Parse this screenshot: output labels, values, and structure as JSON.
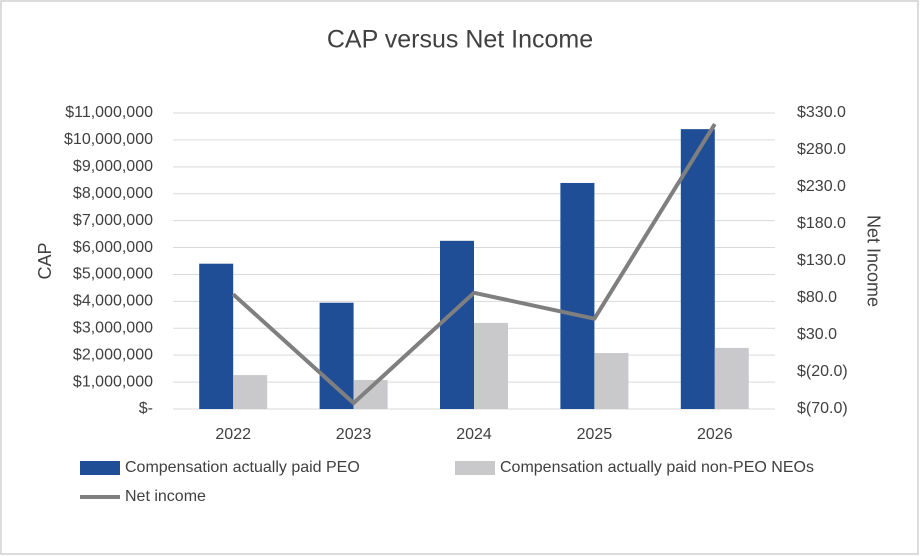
{
  "chart_data": {
    "type": "bar",
    "title": "CAP versus Net Income",
    "y_label": "CAP",
    "y2_label": "Net Income",
    "categories": [
      "2022",
      "2023",
      "2024",
      "2025",
      "2026"
    ],
    "series": [
      {
        "name": "Compensation actually paid PEO",
        "type": "bar",
        "color": "#1f4e96",
        "values": [
          5400000,
          3950000,
          6250000,
          8400000,
          10400000
        ]
      },
      {
        "name": "Compensation actually paid non-PEO NEOs",
        "type": "bar",
        "color": "#c9c9cb",
        "values": [
          1260000,
          1080000,
          3200000,
          2080000,
          2270000
        ]
      },
      {
        "name": "Net income",
        "type": "line",
        "axis": "y2",
        "color": "#7f7f7f",
        "values": [
          85,
          -62,
          87,
          52,
          315
        ]
      }
    ],
    "ylim": [
      0,
      11000000
    ],
    "yticks": [
      {
        "value": 0,
        "label": "$-"
      },
      {
        "value": 1000000,
        "label": "$1,000,000"
      },
      {
        "value": 2000000,
        "label": "$2,000,000"
      },
      {
        "value": 3000000,
        "label": "$3,000,000"
      },
      {
        "value": 4000000,
        "label": "$4,000,000"
      },
      {
        "value": 5000000,
        "label": "$5,000,000"
      },
      {
        "value": 6000000,
        "label": "$6,000,000"
      },
      {
        "value": 7000000,
        "label": "$7,000,000"
      },
      {
        "value": 8000000,
        "label": "$8,000,000"
      },
      {
        "value": 9000000,
        "label": "$9,000,000"
      },
      {
        "value": 10000000,
        "label": "$10,000,000"
      },
      {
        "value": 11000000,
        "label": "$11,000,000"
      }
    ],
    "y2lim": [
      -70,
      330
    ],
    "y2ticks": [
      {
        "value": -70,
        "label": "$(70.0)"
      },
      {
        "value": -20,
        "label": "$(20.0)"
      },
      {
        "value": 30,
        "label": "$30.0"
      },
      {
        "value": 80,
        "label": "$80.0"
      },
      {
        "value": 130,
        "label": "$130.0"
      },
      {
        "value": 180,
        "label": "$180.0"
      },
      {
        "value": 230,
        "label": "$230.0"
      },
      {
        "value": 280,
        "label": "$280.0"
      },
      {
        "value": 330,
        "label": "$330.0"
      }
    ],
    "grid": true
  }
}
